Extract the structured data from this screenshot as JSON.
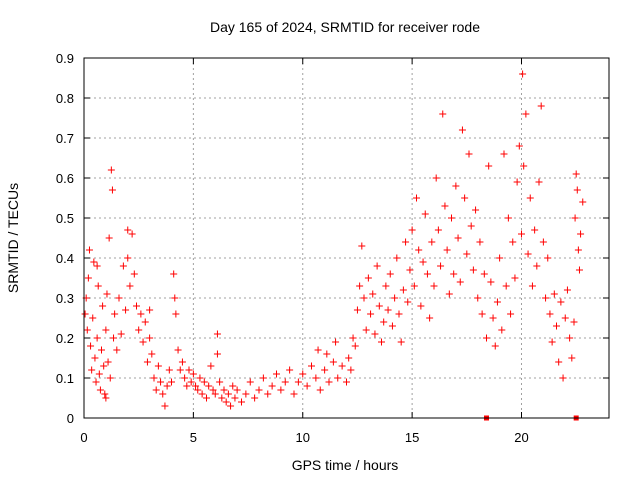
{
  "chart_data": {
    "type": "scatter",
    "title": "Day 165 of 2024, SRMTID for receiver rode",
    "xlabel": "GPS time / hours",
    "ylabel": "SRMTID / TECUs",
    "xlim": [
      0,
      24
    ],
    "ylim": [
      0,
      0.9
    ],
    "x_ticks": [
      0,
      5,
      10,
      15,
      20
    ],
    "y_ticks": [
      0,
      0.1,
      0.2,
      0.3,
      0.4,
      0.5,
      0.6,
      0.7,
      0.8,
      0.9
    ],
    "x_tick_labels": [
      "0",
      "5",
      "10",
      "15",
      "20"
    ],
    "y_tick_labels": [
      "0",
      "0.1",
      "0.2",
      "0.3",
      "0.4",
      "0.5",
      "0.6",
      "0.7",
      "0.8",
      "0.9"
    ],
    "grid": true,
    "marker": "+",
    "color": "#ff0000",
    "series": [
      {
        "name": "SRMTID",
        "points": [
          [
            0.05,
            0.26
          ],
          [
            0.1,
            0.3
          ],
          [
            0.15,
            0.22
          ],
          [
            0.2,
            0.35
          ],
          [
            0.25,
            0.42
          ],
          [
            0.3,
            0.18
          ],
          [
            0.35,
            0.12
          ],
          [
            0.4,
            0.25
          ],
          [
            0.45,
            0.39
          ],
          [
            0.5,
            0.15
          ],
          [
            0.55,
            0.09
          ],
          [
            0.6,
            0.2
          ],
          [
            0.65,
            0.33
          ],
          [
            0.7,
            0.11
          ],
          [
            0.75,
            0.07
          ],
          [
            0.8,
            0.17
          ],
          [
            0.85,
            0.28
          ],
          [
            0.9,
            0.13
          ],
          [
            0.95,
            0.06
          ],
          [
            1.0,
            0.22
          ],
          [
            1.05,
            0.31
          ],
          [
            1.1,
            0.14
          ],
          [
            1.15,
            0.45
          ],
          [
            1.2,
            0.1
          ],
          [
            1.25,
            0.62
          ],
          [
            1.3,
            0.57
          ],
          [
            1.35,
            0.2
          ],
          [
            1.4,
            0.26
          ],
          [
            1.5,
            0.17
          ],
          [
            1.6,
            0.3
          ],
          [
            1.7,
            0.21
          ],
          [
            1.8,
            0.38
          ],
          [
            1.9,
            0.27
          ],
          [
            2.0,
            0.4
          ],
          [
            2.1,
            0.33
          ],
          [
            2.2,
            0.46
          ],
          [
            2.3,
            0.36
          ],
          [
            2.4,
            0.28
          ],
          [
            2.5,
            0.22
          ],
          [
            2.6,
            0.26
          ],
          [
            2.7,
            0.19
          ],
          [
            2.8,
            0.24
          ],
          [
            2.9,
            0.14
          ],
          [
            3.0,
            0.2
          ],
          [
            3.1,
            0.16
          ],
          [
            3.2,
            0.1
          ],
          [
            3.3,
            0.07
          ],
          [
            3.4,
            0.13
          ],
          [
            3.5,
            0.09
          ],
          [
            3.6,
            0.06
          ],
          [
            3.7,
            0.03
          ],
          [
            3.8,
            0.08
          ],
          [
            3.9,
            0.12
          ],
          [
            4.0,
            0.09
          ],
          [
            4.1,
            0.36
          ],
          [
            4.15,
            0.3
          ],
          [
            4.2,
            0.26
          ],
          [
            4.3,
            0.17
          ],
          [
            4.4,
            0.12
          ],
          [
            4.5,
            0.14
          ],
          [
            4.6,
            0.1
          ],
          [
            4.7,
            0.08
          ],
          [
            4.8,
            0.12
          ],
          [
            4.9,
            0.09
          ],
          [
            5.0,
            0.11
          ],
          [
            5.1,
            0.08
          ],
          [
            5.2,
            0.07
          ],
          [
            5.3,
            0.1
          ],
          [
            5.4,
            0.06
          ],
          [
            5.5,
            0.09
          ],
          [
            5.6,
            0.05
          ],
          [
            5.7,
            0.08
          ],
          [
            5.8,
            0.13
          ],
          [
            5.9,
            0.07
          ],
          [
            6.0,
            0.06
          ],
          [
            6.1,
            0.21
          ],
          [
            6.2,
            0.09
          ],
          [
            6.3,
            0.05
          ],
          [
            6.4,
            0.07
          ],
          [
            6.5,
            0.04
          ],
          [
            6.6,
            0.06
          ],
          [
            6.7,
            0.03
          ],
          [
            6.8,
            0.08
          ],
          [
            6.9,
            0.05
          ],
          [
            7.0,
            0.07
          ],
          [
            7.2,
            0.04
          ],
          [
            7.4,
            0.06
          ],
          [
            7.6,
            0.09
          ],
          [
            7.8,
            0.05
          ],
          [
            8.0,
            0.07
          ],
          [
            8.2,
            0.1
          ],
          [
            8.4,
            0.06
          ],
          [
            8.6,
            0.08
          ],
          [
            8.8,
            0.11
          ],
          [
            9.0,
            0.07
          ],
          [
            9.2,
            0.09
          ],
          [
            9.4,
            0.12
          ],
          [
            9.6,
            0.06
          ],
          [
            9.8,
            0.09
          ],
          [
            10.0,
            0.11
          ],
          [
            10.2,
            0.08
          ],
          [
            10.4,
            0.13
          ],
          [
            10.6,
            0.1
          ],
          [
            10.8,
            0.07
          ],
          [
            11.0,
            0.12
          ],
          [
            11.1,
            0.16
          ],
          [
            11.2,
            0.09
          ],
          [
            11.4,
            0.14
          ],
          [
            11.6,
            0.1
          ],
          [
            11.8,
            0.13
          ],
          [
            12.0,
            0.09
          ],
          [
            12.1,
            0.15
          ],
          [
            12.2,
            0.12
          ],
          [
            12.3,
            0.2
          ],
          [
            12.4,
            0.18
          ],
          [
            12.5,
            0.27
          ],
          [
            12.6,
            0.33
          ],
          [
            12.7,
            0.43
          ],
          [
            12.8,
            0.3
          ],
          [
            12.9,
            0.22
          ],
          [
            13.0,
            0.35
          ],
          [
            13.1,
            0.26
          ],
          [
            13.2,
            0.31
          ],
          [
            13.3,
            0.21
          ],
          [
            13.4,
            0.38
          ],
          [
            13.5,
            0.28
          ],
          [
            13.6,
            0.19
          ],
          [
            13.7,
            0.24
          ],
          [
            13.8,
            0.33
          ],
          [
            13.9,
            0.27
          ],
          [
            14.0,
            0.36
          ],
          [
            14.1,
            0.23
          ],
          [
            14.2,
            0.3
          ],
          [
            14.3,
            0.4
          ],
          [
            14.4,
            0.26
          ],
          [
            14.5,
            0.19
          ],
          [
            14.6,
            0.32
          ],
          [
            14.7,
            0.44
          ],
          [
            14.8,
            0.29
          ],
          [
            14.9,
            0.37
          ],
          [
            15.0,
            0.47
          ],
          [
            15.1,
            0.33
          ],
          [
            15.2,
            0.55
          ],
          [
            15.3,
            0.42
          ],
          [
            15.4,
            0.28
          ],
          [
            15.5,
            0.39
          ],
          [
            15.6,
            0.51
          ],
          [
            15.7,
            0.36
          ],
          [
            15.8,
            0.25
          ],
          [
            15.9,
            0.44
          ],
          [
            16.0,
            0.33
          ],
          [
            16.1,
            0.6
          ],
          [
            16.2,
            0.47
          ],
          [
            16.3,
            0.38
          ],
          [
            16.4,
            0.76
          ],
          [
            16.5,
            0.53
          ],
          [
            16.6,
            0.42
          ],
          [
            16.7,
            0.31
          ],
          [
            16.8,
            0.5
          ],
          [
            16.9,
            0.36
          ],
          [
            17.0,
            0.58
          ],
          [
            17.1,
            0.45
          ],
          [
            17.2,
            0.34
          ],
          [
            17.3,
            0.72
          ],
          [
            17.4,
            0.55
          ],
          [
            17.5,
            0.41
          ],
          [
            17.6,
            0.66
          ],
          [
            17.7,
            0.48
          ],
          [
            17.8,
            0.37
          ],
          [
            17.9,
            0.52
          ],
          [
            18.0,
            0.3
          ],
          [
            18.1,
            0.44
          ],
          [
            18.2,
            0.26
          ],
          [
            18.3,
            0.36
          ],
          [
            18.4,
            0.2
          ],
          [
            18.5,
            0.63
          ],
          [
            18.6,
            0.34
          ],
          [
            18.7,
            0.25
          ],
          [
            18.8,
            0.18
          ],
          [
            18.9,
            0.29
          ],
          [
            19.0,
            0.4
          ],
          [
            19.1,
            0.22
          ],
          [
            19.2,
            0.66
          ],
          [
            19.3,
            0.33
          ],
          [
            19.4,
            0.5
          ],
          [
            19.5,
            0.26
          ],
          [
            19.6,
            0.44
          ],
          [
            19.7,
            0.35
          ],
          [
            19.8,
            0.59
          ],
          [
            19.9,
            0.68
          ],
          [
            20.0,
            0.46
          ],
          [
            20.05,
            0.86
          ],
          [
            20.1,
            0.63
          ],
          [
            20.2,
            0.76
          ],
          [
            20.3,
            0.41
          ],
          [
            20.4,
            0.55
          ],
          [
            20.5,
            0.33
          ],
          [
            20.6,
            0.47
          ],
          [
            20.7,
            0.38
          ],
          [
            20.8,
            0.59
          ],
          [
            20.9,
            0.78
          ],
          [
            21.0,
            0.44
          ],
          [
            21.1,
            0.3
          ],
          [
            21.2,
            0.4
          ],
          [
            21.3,
            0.26
          ],
          [
            21.4,
            0.19
          ],
          [
            21.5,
            0.31
          ],
          [
            21.6,
            0.23
          ],
          [
            21.7,
            0.14
          ],
          [
            21.8,
            0.29
          ],
          [
            21.9,
            0.1
          ],
          [
            22.0,
            0.25
          ],
          [
            22.1,
            0.32
          ],
          [
            22.2,
            0.2
          ],
          [
            22.3,
            0.15
          ],
          [
            22.4,
            0.24
          ],
          [
            22.45,
            0.5
          ],
          [
            22.5,
            0.61
          ],
          [
            22.55,
            0.57
          ],
          [
            22.6,
            0.42
          ],
          [
            22.65,
            0.37
          ],
          [
            22.7,
            0.46
          ],
          [
            22.8,
            0.54
          ],
          [
            0.6,
            0.38
          ],
          [
            1.0,
            0.05
          ],
          [
            2.0,
            0.47
          ],
          [
            3.0,
            0.27
          ],
          [
            6.1,
            0.16
          ],
          [
            10.7,
            0.17
          ],
          [
            11.5,
            0.19
          ]
        ]
      }
    ],
    "markers_on_axis": [
      18.4,
      22.5
    ]
  }
}
